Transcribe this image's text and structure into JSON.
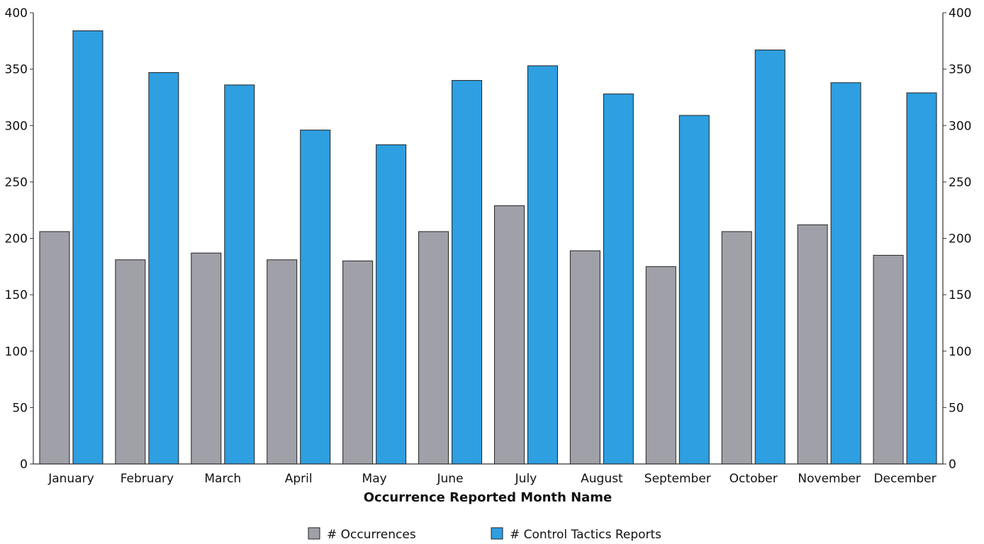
{
  "chart_data": {
    "type": "bar",
    "categories": [
      "January",
      "February",
      "March",
      "April",
      "May",
      "June",
      "July",
      "August",
      "September",
      "October",
      "November",
      "December"
    ],
    "series": [
      {
        "name": "# Occurrences",
        "color": "#a0a1a8",
        "axis": "left",
        "values": [
          206,
          181,
          187,
          181,
          180,
          206,
          229,
          189,
          175,
          206,
          212,
          185
        ]
      },
      {
        "name": "# Control Tactics Reports",
        "color": "#2e9fe0",
        "axis": "right",
        "values": [
          384,
          347,
          336,
          296,
          283,
          340,
          353,
          328,
          309,
          367,
          338,
          329
        ]
      }
    ],
    "xlabel": "Occurrence Reported Month Name",
    "ylim_left": [
      0,
      400
    ],
    "ylim_right": [
      0,
      400
    ],
    "yticks": [
      0,
      50,
      100,
      150,
      200,
      250,
      300,
      350,
      400
    ],
    "legend_position": "bottom",
    "grid": false
  }
}
